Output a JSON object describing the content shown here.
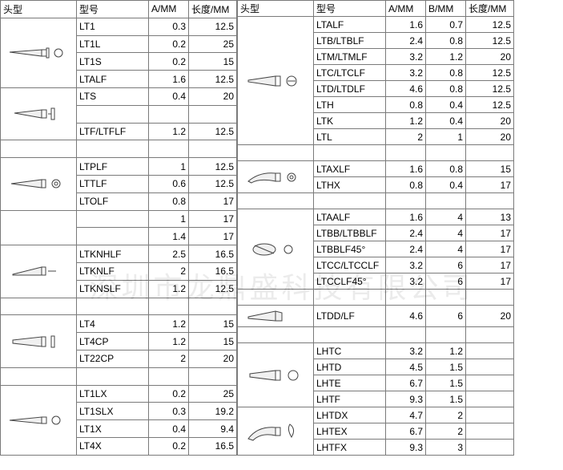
{
  "headers": {
    "head": "头型",
    "model": "型号",
    "a": "A/MM",
    "b": "B/MM",
    "len": "长度/MM"
  },
  "watermark": "深圳市龙鼎盛科技有限公司",
  "left": [
    {
      "iconRows": 4,
      "icon": "needle",
      "rows": [
        {
          "m": "LT1",
          "a": "0.3",
          "l": "12.5"
        },
        {
          "m": "LT1L",
          "a": "0.2",
          "l": "25"
        },
        {
          "m": "LT1S",
          "a": "0.2",
          "l": "15"
        },
        {
          "m": "LTALF",
          "a": "1.6",
          "l": "12.5"
        }
      ]
    },
    {
      "iconRows": 3,
      "icon": "slot",
      "rows": [
        {
          "m": "LTS",
          "a": "0.4",
          "l": "20"
        },
        {
          "m": "",
          "a": "",
          "l": ""
        },
        {
          "m": "LTF/LTFLF",
          "a": "1.2",
          "l": "12.5"
        }
      ]
    },
    {
      "iconRows": 1,
      "icon": "",
      "rows": [
        {
          "m": "",
          "a": "",
          "l": ""
        }
      ]
    },
    {
      "iconRows": 3,
      "icon": "cone",
      "rows": [
        {
          "m": "LTPLF",
          "a": "1",
          "l": "12.5"
        },
        {
          "m": "LTTLF",
          "a": "0.6",
          "l": "12.5"
        },
        {
          "m": "LTOLF",
          "a": "0.8",
          "l": "17"
        }
      ]
    },
    {
      "iconRows": 2,
      "icon": "",
      "rows": [
        {
          "m": "",
          "a": "1",
          "l": "17"
        },
        {
          "m": "",
          "a": "1.4",
          "l": "17"
        }
      ]
    },
    {
      "iconRows": 3,
      "icon": "knife",
      "rows": [
        {
          "m": "LTKNHLF",
          "a": "2.5",
          "l": "16.5"
        },
        {
          "m": "LTKNLF",
          "a": "2",
          "l": "16.5"
        },
        {
          "m": "LTKNSLF",
          "a": "1.2",
          "l": "12.5"
        }
      ]
    },
    {
      "iconRows": 1,
      "icon": "",
      "rows": [
        {
          "m": "",
          "a": "",
          "l": ""
        }
      ]
    },
    {
      "iconRows": 3,
      "icon": "slot2",
      "rows": [
        {
          "m": "LT4",
          "a": "1.2",
          "l": "15"
        },
        {
          "m": "LT4CP",
          "a": "1.2",
          "l": "15"
        },
        {
          "m": "LT22CP",
          "a": "2",
          "l": "20"
        }
      ]
    },
    {
      "iconRows": 1,
      "icon": "",
      "rows": [
        {
          "m": "",
          "a": "",
          "l": ""
        }
      ]
    },
    {
      "iconRows": 4,
      "icon": "needle2",
      "rows": [
        {
          "m": "LT1LX",
          "a": "0.2",
          "l": "25"
        },
        {
          "m": "LT1SLX",
          "a": "0.3",
          "l": "19.2"
        },
        {
          "m": "LT1X",
          "a": "0.4",
          "l": "9.4"
        },
        {
          "m": "LT4X",
          "a": "0.2",
          "l": "16.5"
        }
      ]
    }
  ],
  "right": [
    {
      "iconRows": 8,
      "icon": "chisel",
      "rows": [
        {
          "m": "LTALF",
          "a": "1.6",
          "b": "0.7",
          "l": "12.5"
        },
        {
          "m": "LTB/LTBLF",
          "a": "2.4",
          "b": "0.8",
          "l": "12.5"
        },
        {
          "m": "LTM/LTMLF",
          "a": "3.2",
          "b": "1.2",
          "l": "20"
        },
        {
          "m": "LTC/LTCLF",
          "a": "3.2",
          "b": "0.8",
          "l": "12.5"
        },
        {
          "m": "LTD/LTDLF",
          "a": "4.6",
          "b": "0.8",
          "l": "12.5"
        },
        {
          "m": "LTH",
          "a": "0.8",
          "b": "0.4",
          "l": "12.5"
        },
        {
          "m": "LTK",
          "a": "1.2",
          "b": "0.4",
          "l": "20"
        },
        {
          "m": "LTL",
          "a": "2",
          "b": "1",
          "l": "20"
        }
      ]
    },
    {
      "iconRows": 1,
      "icon": "",
      "rows": [
        {
          "m": "",
          "a": "",
          "b": "",
          "l": ""
        }
      ]
    },
    {
      "iconRows": 2,
      "icon": "bent",
      "rows": [
        {
          "m": "LTAXLF",
          "a": "1.6",
          "b": "0.8",
          "l": "15"
        },
        {
          "m": "LTHX",
          "a": "0.8",
          "b": "0.4",
          "l": "17"
        }
      ]
    },
    {
      "iconRows": 1,
      "icon": "",
      "rows": [
        {
          "m": "",
          "a": "",
          "b": "",
          "l": ""
        }
      ]
    },
    {
      "iconRows": 5,
      "icon": "oval",
      "rows": [
        {
          "m": "LTAALF",
          "a": "1.6",
          "b": "4",
          "l": "13"
        },
        {
          "m": "LTBB/LTBBLF",
          "a": "2.4",
          "b": "4",
          "l": "17"
        },
        {
          "m": "LTBBLF45°",
          "a": "2.4",
          "b": "4",
          "l": "17"
        },
        {
          "m": "LTCC/LTCCLF",
          "a": "3.2",
          "b": "6",
          "l": "17"
        },
        {
          "m": "LTCCLF45°",
          "a": "3.2",
          "b": "6",
          "l": "17"
        }
      ]
    },
    {
      "iconRows": 1,
      "icon": "",
      "rows": [
        {
          "m": "",
          "a": "",
          "b": "",
          "l": ""
        }
      ]
    },
    {
      "iconRows": 1,
      "icon": "blade",
      "rows": [
        {
          "m": "LTDD/LF",
          "a": "4.6",
          "b": "6",
          "l": "20"
        }
      ]
    },
    {
      "iconRows": 1,
      "icon": "",
      "rows": [
        {
          "m": "",
          "a": "",
          "b": "",
          "l": ""
        }
      ]
    },
    {
      "iconRows": 4,
      "icon": "round",
      "rows": [
        {
          "m": "LHTC",
          "a": "3.2",
          "b": "1.2",
          "l": ""
        },
        {
          "m": "LHTD",
          "a": "4.5",
          "b": "1.5",
          "l": ""
        },
        {
          "m": "LHTE",
          "a": "6.7",
          "b": "1.5",
          "l": ""
        },
        {
          "m": "LHTF",
          "a": "9.3",
          "b": "1.5",
          "l": ""
        }
      ]
    },
    {
      "iconRows": 3,
      "icon": "bent2",
      "rows": [
        {
          "m": "LHTDX",
          "a": "4.7",
          "b": "2",
          "l": ""
        },
        {
          "m": "LHTEX",
          "a": "6.7",
          "b": "2",
          "l": ""
        },
        {
          "m": "LHTFX",
          "a": "9.3",
          "b": "3",
          "l": ""
        }
      ]
    }
  ],
  "icons": {
    "needle": "<svg width='80' height='24'><polygon class='fst' points='4,11 44,8 44,16'/><rect class='st' x='44' y='8' width='6' height='8'/><rect class='st' x='50' y='6' width='3' height='12'/><circle class='st' cx='65' cy='12' r='5'/></svg>",
    "slot": "<svg width='80' height='24'><polygon class='fst' points='10,11 44,7 44,17'/><rect class='st' x='44' y='7' width='6' height='10'/><rect class='st' x='56' y='5' width='4' height='14'/><line class='st' x1='52' y1='12' x2='56' y2='12'/></svg>",
    "cone": "<svg width='80' height='24'><polygon class='fst' points='6,12 44,7 44,17'/><rect class='st' x='44' y='7' width='5' height='10'/><circle class='st' cx='62' cy='12' r='5'/><circle class='st' cx='62' cy='12' r='2'/></svg>",
    "knife": "<svg width='80' height='24'><path class='fst' d='M8 16 L44 7 L44 17 L8 17 Z'/><rect class='st' x='44' y='7' width='5' height='10'/><line class='st' x1='52' y1='12' x2='62' y2='12'/></svg>",
    "slot2": "<svg width='80' height='24'><polygon class='fst' points='8,10 44,6 44,18 8,14'/><rect class='st' x='44' y='6' width='5' height='12'/><rect class='st' x='56' y='5' width='4' height='14'/></svg>",
    "needle2": "<svg width='80' height='24'><polygon class='fst' points='4,12 44,8 44,16'/><rect class='st' x='44' y='8' width='6' height='8'/><circle class='st' cx='62' cy='12' r='5'/></svg>",
    "chisel": "<svg width='80' height='30'><polygon class='fst' points='6,14 40,9 40,21 6,16'/><rect class='st' x='40' y='9' width='6' height='12'/><circle class='st' cx='60' cy='15' r='6'/><line class='st' x1='55' y1='15' x2='65' y2='15'/></svg>",
    "bent": "<svg width='80' height='30'><path class='fst' d='M6 20 Q20 8 40 10 L40 20 Q20 16 10 22 Z'/><rect class='st' x='40' y='10' width='6' height='10'/><circle class='st' cx='60' cy='15' r='5'/><circle class='st' cx='60' cy='15' r='2'/></svg>",
    "oval": "<svg width='80' height='30'><ellipse class='fst' cx='26' cy='15' rx='14' ry='7'/><line class='st' x1='14' y1='10' x2='38' y2='20'/><circle class='st' cx='56' cy='15' r='5'/></svg>",
    "blade": "<svg width='80' height='26'><path class='fst' d='M6 14 L40 7 L48 9 L48 19 L40 19 L6 16 Z'/><line class='st' x1='40' y1='7' x2='40' y2='19'/></svg>",
    "round": "<svg width='80' height='30'><polygon class='fst' points='8,13 40,9 40,21 8,17'/><rect class='st' x='40' y='9' width='6' height='12'/><circle class='st' cx='62' cy='15' r='6'/></svg>",
    "bent2": "<svg width='80' height='34'><path class='fst' d='M6 26 Q18 10 40 12 L40 22 Q22 18 12 28 Z'/><rect class='st' x='40' y='12' width='6' height='10'/><path class='st' d='M58 8 Q66 14 60 24 Q54 14 58 8 Z'/></svg>"
  }
}
